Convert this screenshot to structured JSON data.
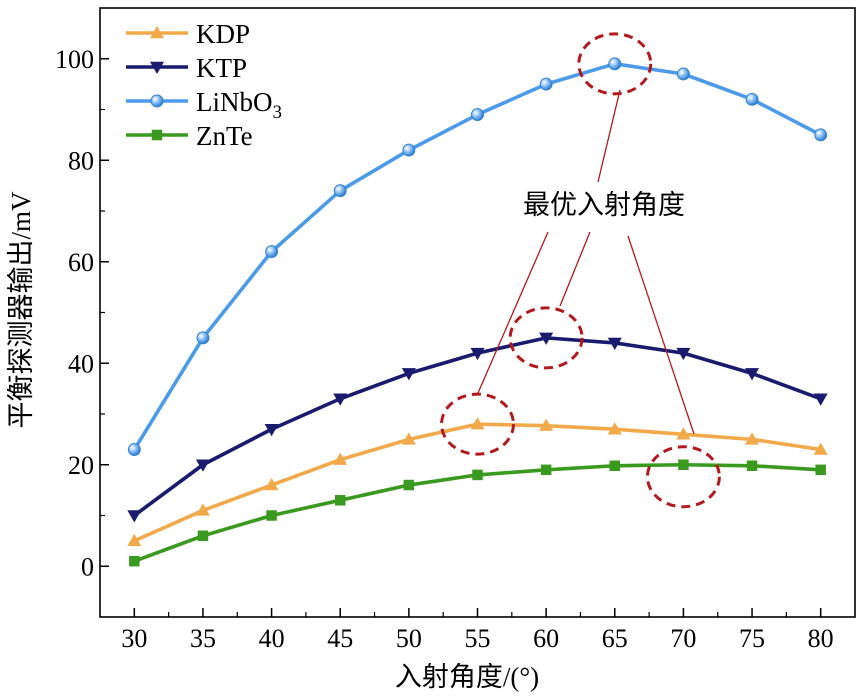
{
  "chart_data": {
    "type": "line",
    "xlabel": "入射角度/(°)",
    "ylabel": "平衡探测器输出/mV",
    "x": [
      30,
      35,
      40,
      45,
      50,
      55,
      60,
      65,
      70,
      75,
      80
    ],
    "xlim": [
      27.5,
      82.5
    ],
    "ylim": [
      -10,
      110
    ],
    "xticks": [
      30,
      35,
      40,
      45,
      50,
      55,
      60,
      65,
      70,
      75,
      80
    ],
    "yticks": [
      0,
      20,
      40,
      60,
      80,
      100
    ],
    "grid": false,
    "legend_position": "top-left",
    "series": [
      {
        "name": "KDP",
        "marker": "triangle-up",
        "color": "#F2A94A",
        "values": [
          5,
          11,
          16,
          21,
          25,
          28,
          27.7,
          27,
          26,
          25,
          23
        ]
      },
      {
        "name": "KTP",
        "marker": "triangle-down",
        "color": "#1A1A6E",
        "values": [
          10,
          20,
          27,
          33,
          38,
          42,
          45,
          44,
          42,
          38,
          33
        ]
      },
      {
        "name": "LiNbO",
        "name_sub": "3",
        "marker": "sphere",
        "color": "#4B9BEA",
        "values": [
          23,
          45,
          62,
          74,
          82,
          89,
          95,
          99,
          97,
          92,
          85
        ]
      },
      {
        "name": "ZnTe",
        "marker": "square",
        "color": "#3A9A1F",
        "values": [
          1,
          6,
          10,
          13,
          16,
          18,
          19,
          19.8,
          20,
          19.8,
          19
        ]
      }
    ],
    "annotation": {
      "text": "最优入射角度",
      "color": "#B2191E",
      "highlights": [
        {
          "series": "KDP",
          "x": 55,
          "y": 28
        },
        {
          "series": "KTP",
          "x": 60,
          "y": 45
        },
        {
          "series": "LiNbO3",
          "x": 65,
          "y": 99
        },
        {
          "series": "ZnTe",
          "x": 70,
          "y": 20
        }
      ]
    }
  }
}
